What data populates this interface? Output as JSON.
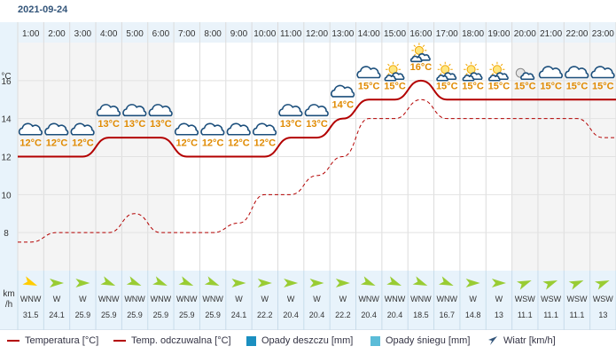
{
  "title": "2021-09-24",
  "legend": {
    "temp": "Temperatura [°C]",
    "feels": "Temp. odczuwalna [°C]",
    "rain": "Opady deszczu [mm]",
    "snow": "Opady śniegu [mm]",
    "wind": "Wiatr [km/h]"
  },
  "axis": {
    "temp_unit": "°C",
    "wind_unit_1": "km",
    "wind_unit_2": "/h"
  },
  "colors": {
    "temp": "#b30000",
    "feels": "#b30000",
    "rain": "#1b8fc0",
    "snow": "#5bbcd8",
    "label": "#e08a00",
    "wind_arrow": "#99cc33",
    "wind_arrow_strong": "#ffcc00"
  },
  "chart_data": {
    "type": "line",
    "x": [
      "1:00",
      "2:00",
      "3:00",
      "4:00",
      "5:00",
      "6:00",
      "7:00",
      "8:00",
      "9:00",
      "10:00",
      "11:00",
      "12:00",
      "13:00",
      "14:00",
      "15:00",
      "16:00",
      "17:00",
      "18:00",
      "19:00",
      "20:00",
      "21:00",
      "22:00",
      "23:00"
    ],
    "ylim": [
      6,
      18
    ],
    "yticks": [
      8,
      10,
      12,
      14,
      16
    ],
    "series": [
      {
        "name": "Temperatura [°C]",
        "values": [
          12,
          12,
          12,
          13,
          13,
          13,
          12,
          12,
          12,
          12,
          13,
          13,
          14,
          15,
          15,
          16,
          15,
          15,
          15,
          15,
          15,
          15,
          15
        ]
      },
      {
        "name": "Temp. odczuwalna [°C]",
        "values": [
          7.5,
          8,
          8,
          8,
          9,
          8,
          8,
          8,
          8.5,
          10,
          10,
          11,
          12,
          14,
          14,
          15,
          14,
          14,
          14,
          14,
          14,
          14,
          13
        ]
      }
    ],
    "temp_labels": [
      "12°C",
      "12°C",
      "12°C",
      "13°C",
      "13°C",
      "13°C",
      "12°C",
      "12°C",
      "12°C",
      "12°C",
      "13°C",
      "13°C",
      "14°C",
      "15°C",
      "15°C",
      "16°C",
      "15°C",
      "15°C",
      "15°C",
      "15°C",
      "15°C",
      "15°C",
      "15°C"
    ],
    "weather_icons": [
      "cloud-icon",
      "cloud-icon",
      "cloud-icon",
      "cloud-icon",
      "cloud-icon",
      "cloud-icon",
      "cloud-icon",
      "cloud-icon",
      "cloud-icon",
      "cloud-icon",
      "cloud-icon",
      "cloud-icon",
      "cloud-icon",
      "cloud-icon",
      "sun-cloud-icon",
      "sun-cloud-icon",
      "sun-cloud-icon",
      "sun-cloud-icon",
      "sun-cloud-icon",
      "moon-cloud-icon",
      "cloud-icon",
      "cloud-icon",
      "cloud-icon"
    ],
    "wind_dir": [
      "WNW",
      "W",
      "W",
      "WNW",
      "WNW",
      "WNW",
      "WNW",
      "WNW",
      "W",
      "W",
      "W",
      "W",
      "W",
      "WNW",
      "WNW",
      "WNW",
      "WNW",
      "W",
      "W",
      "WSW",
      "WSW",
      "WSW",
      "WSW"
    ],
    "wind_speed": [
      31.5,
      24.1,
      25.9,
      25.9,
      25.9,
      25.9,
      25.9,
      25.9,
      24.1,
      22.2,
      20.4,
      20.4,
      22.2,
      20.4,
      20.4,
      18.5,
      16.7,
      14.8,
      13,
      11.1,
      11.1,
      11.1,
      13
    ],
    "wind_speed_labels": [
      "31.5",
      "24.1",
      "25.9",
      "25.9",
      "25.9",
      "25.9",
      "25.9",
      "25.9",
      "24.1",
      "22.2",
      "20.4",
      "20.4",
      "22.2",
      "20.4",
      "20.4",
      "18.5",
      "16.7",
      "14.8",
      "13",
      "11.1",
      "11.1",
      "11.1",
      "13"
    ],
    "grid": true
  }
}
